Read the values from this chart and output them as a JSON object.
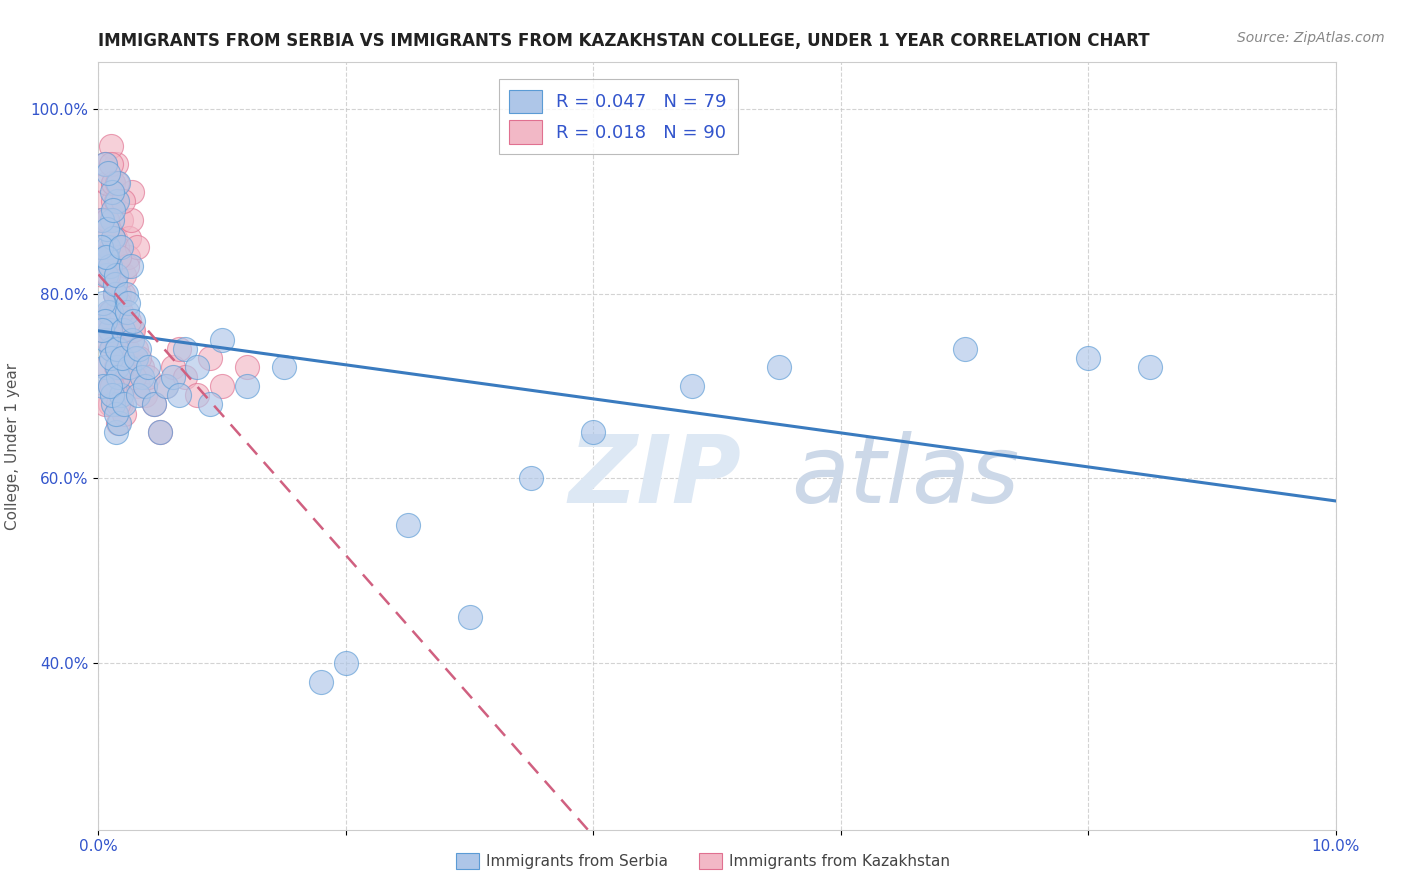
{
  "title": "IMMIGRANTS FROM SERBIA VS IMMIGRANTS FROM KAZAKHSTAN COLLEGE, UNDER 1 YEAR CORRELATION CHART",
  "source": "Source: ZipAtlas.com",
  "ylabel": "College, Under 1 year",
  "xlim": [
    0.0,
    0.1
  ],
  "ylim": [
    0.22,
    1.05
  ],
  "serbia_R": 0.047,
  "serbia_N": 79,
  "kazakhstan_R": 0.018,
  "kazakhstan_N": 90,
  "serbia_color": "#aec6e8",
  "kazakhstan_color": "#f2b8c6",
  "serbia_edge_color": "#5b9bd5",
  "kazakhstan_edge_color": "#e07090",
  "serbia_line_color": "#3a7bbf",
  "kazakhstan_line_color": "#d06080",
  "legend_box_color_serbia": "#aec6e8",
  "legend_box_color_kazakhstan": "#f2b8c6",
  "legend_text_color": "#3355cc",
  "title_fontsize": 12,
  "axis_label_fontsize": 11,
  "tick_fontsize": 11,
  "source_fontsize": 10,
  "grid_color": "#c8c8c8",
  "background_color": "#ffffff",
  "serbia_x": [
    0.0005,
    0.0008,
    0.001,
    0.0012,
    0.0015,
    0.0006,
    0.0009,
    0.0011,
    0.0014,
    0.0016,
    0.0004,
    0.0007,
    0.001,
    0.0013,
    0.0017,
    0.0005,
    0.0008,
    0.0012,
    0.0015,
    0.0018,
    0.0003,
    0.0006,
    0.0009,
    0.0011,
    0.0014,
    0.0004,
    0.0007,
    0.001,
    0.0013,
    0.0016,
    0.0002,
    0.0005,
    0.0008,
    0.0011,
    0.0014,
    0.0003,
    0.0006,
    0.0009,
    0.0012,
    0.0015,
    0.002,
    0.0022,
    0.0025,
    0.0018,
    0.0021,
    0.0023,
    0.0026,
    0.0019,
    0.0024,
    0.0027,
    0.003,
    0.0035,
    0.0032,
    0.0028,
    0.0033,
    0.0038,
    0.004,
    0.0045,
    0.005,
    0.0055,
    0.006,
    0.0065,
    0.007,
    0.008,
    0.009,
    0.01,
    0.012,
    0.015,
    0.018,
    0.02,
    0.025,
    0.03,
    0.035,
    0.04,
    0.048,
    0.055,
    0.07,
    0.08,
    0.085
  ],
  "serbia_y": [
    0.72,
    0.85,
    0.78,
    0.68,
    0.9,
    0.82,
    0.76,
    0.88,
    0.65,
    0.92,
    0.7,
    0.84,
    0.74,
    0.8,
    0.66,
    0.94,
    0.78,
    0.86,
    0.72,
    0.69,
    0.88,
    0.75,
    0.83,
    0.91,
    0.67,
    0.79,
    0.87,
    0.73,
    0.81,
    0.71,
    0.85,
    0.77,
    0.93,
    0.69,
    0.82,
    0.76,
    0.84,
    0.7,
    0.89,
    0.74,
    0.76,
    0.8,
    0.72,
    0.85,
    0.68,
    0.78,
    0.83,
    0.73,
    0.79,
    0.75,
    0.73,
    0.71,
    0.69,
    0.77,
    0.74,
    0.7,
    0.72,
    0.68,
    0.65,
    0.7,
    0.71,
    0.69,
    0.74,
    0.72,
    0.68,
    0.75,
    0.7,
    0.72,
    0.38,
    0.4,
    0.55,
    0.45,
    0.6,
    0.65,
    0.7,
    0.72,
    0.74,
    0.73,
    0.72
  ],
  "kazakhstan_x": [
    0.0005,
    0.0008,
    0.001,
    0.0012,
    0.0015,
    0.0006,
    0.0009,
    0.0011,
    0.0014,
    0.0016,
    0.0004,
    0.0007,
    0.001,
    0.0013,
    0.0003,
    0.0006,
    0.0009,
    0.0012,
    0.0015,
    0.0018,
    0.0004,
    0.0007,
    0.001,
    0.0013,
    0.0016,
    0.0005,
    0.0008,
    0.0011,
    0.0014,
    0.0017,
    0.0002,
    0.0005,
    0.0008,
    0.0011,
    0.0014,
    0.0003,
    0.0006,
    0.0009,
    0.0012,
    0.0015,
    0.002,
    0.0022,
    0.0025,
    0.0018,
    0.0021,
    0.0023,
    0.0026,
    0.0019,
    0.0024,
    0.0027,
    0.003,
    0.0035,
    0.0032,
    0.0028,
    0.0033,
    0.0038,
    0.004,
    0.0045,
    0.005,
    0.0055,
    0.006,
    0.0065,
    0.007,
    0.008,
    0.009,
    0.01,
    0.012,
    0.0015,
    0.0017,
    0.0019,
    0.0021,
    0.0023,
    0.0025,
    0.0027,
    0.0029,
    0.0031,
    0.0007,
    0.0008,
    0.0009,
    0.001,
    0.0011,
    0.0012,
    0.0013,
    0.0014,
    0.0015,
    0.0016,
    0.0017,
    0.0018,
    0.0019,
    0.002
  ],
  "kazakhstan_y": [
    0.9,
    0.75,
    0.85,
    0.92,
    0.7,
    0.88,
    0.78,
    0.82,
    0.94,
    0.66,
    0.86,
    0.72,
    0.96,
    0.8,
    0.84,
    0.76,
    0.68,
    0.9,
    0.74,
    0.88,
    0.82,
    0.92,
    0.78,
    0.86,
    0.7,
    0.94,
    0.76,
    0.84,
    0.72,
    0.8,
    0.88,
    0.68,
    0.82,
    0.74,
    0.9,
    0.76,
    0.84,
    0.7,
    0.92,
    0.78,
    0.8,
    0.72,
    0.86,
    0.68,
    0.82,
    0.74,
    0.88,
    0.7,
    0.84,
    0.76,
    0.74,
    0.72,
    0.7,
    0.76,
    0.73,
    0.69,
    0.71,
    0.68,
    0.65,
    0.7,
    0.72,
    0.74,
    0.71,
    0.69,
    0.73,
    0.7,
    0.72,
    0.85,
    0.79,
    0.73,
    0.67,
    0.83,
    0.77,
    0.91,
    0.71,
    0.85,
    0.88,
    0.82,
    0.76,
    0.94,
    0.7,
    0.86,
    0.8,
    0.74,
    0.92,
    0.68,
    0.84,
    0.78,
    0.72,
    0.9
  ]
}
